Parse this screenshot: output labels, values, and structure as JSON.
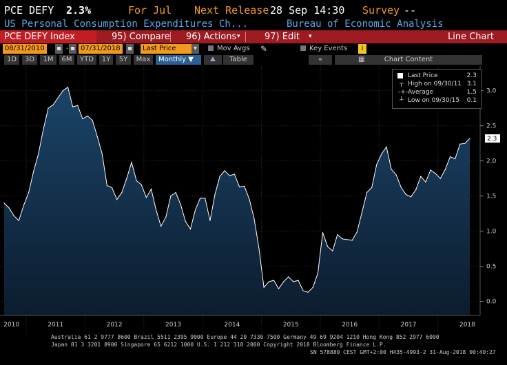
{
  "header": {
    "ticker_label": "PCE DEFY",
    "value": "2.3%",
    "period": "For Jul",
    "next_release_label": "Next Release",
    "next_release_value": "28 Sep 14:30",
    "survey_label": "Survey",
    "survey_value": "--",
    "description": "US Personal Consumption Expenditures Ch...",
    "source": "Bureau of Economic Analysis"
  },
  "toolbar": {
    "index_name": "PCE DEFY Index",
    "compare_label": "95) Compare",
    "actions_label": "96) Actions",
    "edit_label": "97) Edit",
    "chart_type": "Line Chart",
    "colors": {
      "bar": "#9d1b21",
      "ticker_bg": "#c11e24"
    }
  },
  "settings": {
    "start_date": "08/31/2010",
    "end_date": "07/31/2018",
    "price_field": "Last Price",
    "mov_avgs_label": "Mov Avgs",
    "key_events_label": "Key Events"
  },
  "periods": {
    "items": [
      "1D",
      "3D",
      "1M",
      "6M",
      "YTD",
      "1Y",
      "5Y",
      "Max"
    ],
    "frequency": "Monthly",
    "table_label": "Table",
    "chart_content_label": "Chart Content",
    "collapse_label": "«"
  },
  "legend": {
    "last_price_label": "Last Price",
    "last_price_value": "2.3",
    "high_label": "High on 09/30/11",
    "high_value": "3.1",
    "average_label": "Average",
    "average_value": "1.5",
    "low_label": "Low on 09/30/15",
    "low_value": "0.1"
  },
  "footer": {
    "line1": "Australia 61 2 9777 8600 Brazil 5511 2395 9000 Europe 44 20 7330 7500 Germany 49 69 9204 1210 Hong Kong 852 2977 6000",
    "line2": "Japan 81 3 3201 8900       Singapore 65 6212 1000      U.S. 1 212 318 2000           Copyright 2018 Bloomberg Finance L.P.",
    "line3": "SN 578880 CEST GMT+2:00 H435-4993-2 31-Aug-2018 00:40:27"
  },
  "chart_data": {
    "type": "area",
    "title": "PCE DEFY Index",
    "frequency": "Monthly",
    "x_start": "2010-08",
    "x_end": "2018-07",
    "ylim": [
      -0.2,
      3.35
    ],
    "yticks": [
      "0.0",
      "0.5",
      "1.0",
      "1.5",
      "2.0",
      "2.5",
      "3.0"
    ],
    "xtick_labels": [
      "2010",
      "2011",
      "2012",
      "2013",
      "2014",
      "2015",
      "2016",
      "2017",
      "2018"
    ],
    "last_value_label": "2.3",
    "colors": {
      "line": "#ffffff",
      "fill_top": "#1b4468",
      "fill_bottom": "#0c1c2e",
      "background": "#000000"
    },
    "series": [
      {
        "values": [
          1.4,
          1.33,
          1.22,
          1.15,
          1.37,
          1.55,
          1.85,
          2.1,
          2.45,
          2.75,
          2.8,
          2.9,
          3.0,
          3.05,
          2.77,
          2.79,
          2.6,
          2.64,
          2.58,
          2.35,
          2.1,
          1.65,
          1.62,
          1.45,
          1.55,
          1.75,
          1.98,
          1.72,
          1.66,
          1.48,
          1.6,
          1.3,
          1.07,
          1.2,
          1.5,
          1.55,
          1.38,
          1.14,
          1.03,
          1.3,
          1.47,
          1.47,
          1.15,
          1.52,
          1.78,
          1.86,
          1.79,
          1.81,
          1.63,
          1.64,
          1.46,
          1.18,
          0.75,
          0.2,
          0.28,
          0.3,
          0.18,
          0.28,
          0.35,
          0.28,
          0.3,
          0.15,
          0.13,
          0.2,
          0.4,
          0.98,
          0.78,
          0.72,
          0.95,
          0.89,
          0.88,
          0.87,
          0.99,
          1.27,
          1.55,
          1.62,
          1.95,
          2.1,
          2.2,
          1.88,
          1.8,
          1.62,
          1.52,
          1.49,
          1.59,
          1.78,
          1.7,
          1.87,
          1.82,
          1.75,
          1.88,
          2.06,
          2.03,
          2.24,
          2.25,
          2.32
        ]
      }
    ]
  }
}
